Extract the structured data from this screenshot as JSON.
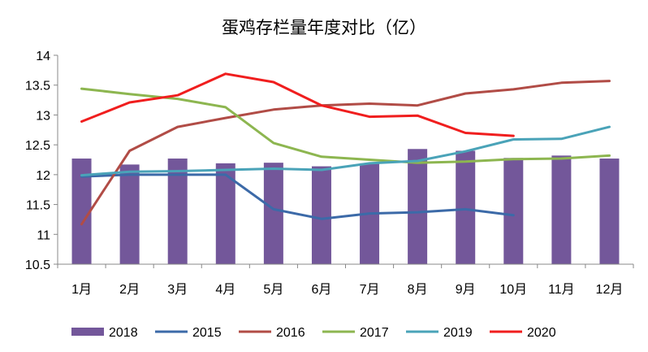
{
  "chart_data": {
    "type": "bar+line",
    "title": "蛋鸡存栏量年度对比（亿）",
    "categories": [
      "1月",
      "2月",
      "3月",
      "4月",
      "5月",
      "6月",
      "7月",
      "8月",
      "9月",
      "10月",
      "11月",
      "12月"
    ],
    "ylim": [
      10.5,
      14
    ],
    "yticks": [
      "10.5",
      "11",
      "11.5",
      "12",
      "12.5",
      "13",
      "13.5",
      "14"
    ],
    "ytick_values": [
      10.5,
      11,
      11.5,
      12,
      12.5,
      13,
      13.5,
      14
    ],
    "grid": false,
    "legend_position": "bottom",
    "bar_series": {
      "name": "2018",
      "color": "#73579a",
      "values": [
        12.27,
        12.17,
        12.27,
        12.19,
        12.2,
        12.14,
        12.19,
        12.43,
        12.4,
        12.28,
        12.32,
        12.27
      ]
    },
    "line_series": [
      {
        "name": "2015",
        "color": "#3c6aa8",
        "values": [
          11.97,
          12.0,
          12.0,
          12.0,
          11.42,
          11.26,
          11.35,
          11.37,
          11.42,
          11.32
        ]
      },
      {
        "name": "2016",
        "color": "#b14c46",
        "values": [
          11.17,
          12.4,
          12.8,
          12.95,
          13.09,
          13.16,
          13.19,
          13.16,
          13.36,
          13.43,
          13.54,
          13.57
        ]
      },
      {
        "name": "2017",
        "color": "#8db650",
        "values": [
          13.44,
          13.35,
          13.27,
          13.13,
          12.53,
          12.3,
          12.25,
          12.2,
          12.22,
          12.26,
          12.27,
          12.32
        ]
      },
      {
        "name": "2019",
        "color": "#4aa3b8",
        "values": [
          11.99,
          12.05,
          12.06,
          12.08,
          12.1,
          12.08,
          12.19,
          12.23,
          12.39,
          12.59,
          12.6,
          12.8
        ]
      },
      {
        "name": "2020",
        "color": "#f01e1e",
        "values": [
          12.89,
          13.21,
          13.33,
          13.69,
          13.55,
          13.16,
          12.97,
          12.99,
          12.7,
          12.65
        ]
      }
    ]
  }
}
